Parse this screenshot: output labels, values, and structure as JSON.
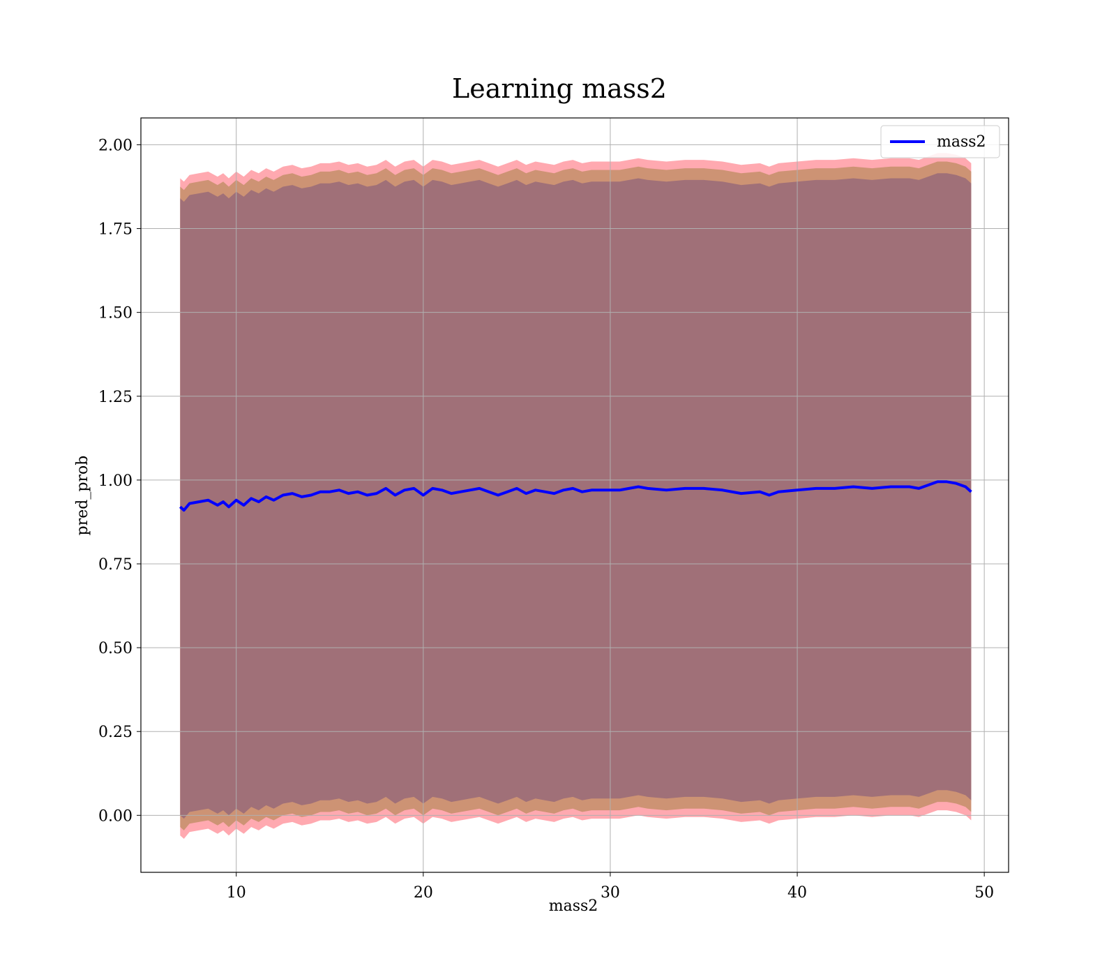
{
  "chart_data": {
    "type": "line",
    "title": "Learning mass2",
    "xlabel": "mass2",
    "ylabel": "pred_prob",
    "xlim": [
      4.9,
      51.3
    ],
    "ylim": [
      -0.17,
      2.08
    ],
    "xticks": [
      10,
      20,
      30,
      40,
      50
    ],
    "yticks": [
      0.0,
      0.25,
      0.5,
      0.75,
      1.0,
      1.25,
      1.5,
      1.75,
      2.0
    ],
    "ytick_labels": [
      "0.00",
      "0.25",
      "0.50",
      "0.75",
      "1.00",
      "1.25",
      "1.50",
      "1.75",
      "2.00"
    ],
    "grid": true,
    "legend": {
      "placement": "top-right",
      "entries": [
        "mass2"
      ]
    },
    "colors": {
      "line": "#0000ff",
      "outer_band": "#ff9aa2",
      "middle_band": "#c8906e",
      "inner_band": "#a07078",
      "grid": "#b0b0b0"
    },
    "series": [
      {
        "name": "mass2",
        "x": [
          7.0,
          7.2,
          7.5,
          8.0,
          8.5,
          9.0,
          9.3,
          9.6,
          10.0,
          10.4,
          10.8,
          11.2,
          11.6,
          12.0,
          12.5,
          13.0,
          13.5,
          14.0,
          14.5,
          15.0,
          15.5,
          16.0,
          16.5,
          17.0,
          17.5,
          18.0,
          18.5,
          19.0,
          19.5,
          20.0,
          20.5,
          21.0,
          21.5,
          22.0,
          22.5,
          23.0,
          23.5,
          24.0,
          24.5,
          25.0,
          25.5,
          26.0,
          26.5,
          27.0,
          27.5,
          28.0,
          28.5,
          29.0,
          29.5,
          30.0,
          30.5,
          31.0,
          31.5,
          32.0,
          33.0,
          34.0,
          35.0,
          36.0,
          37.0,
          38.0,
          38.5,
          39.0,
          40.0,
          41.0,
          42.0,
          43.0,
          44.0,
          45.0,
          46.0,
          46.5,
          47.0,
          47.5,
          48.0,
          48.5,
          49.0,
          49.3
        ],
        "y": [
          0.92,
          0.91,
          0.93,
          0.935,
          0.94,
          0.925,
          0.935,
          0.92,
          0.94,
          0.925,
          0.945,
          0.935,
          0.95,
          0.94,
          0.955,
          0.96,
          0.95,
          0.955,
          0.965,
          0.965,
          0.97,
          0.96,
          0.965,
          0.955,
          0.96,
          0.975,
          0.955,
          0.97,
          0.975,
          0.955,
          0.975,
          0.97,
          0.96,
          0.965,
          0.97,
          0.975,
          0.965,
          0.955,
          0.965,
          0.975,
          0.96,
          0.97,
          0.965,
          0.96,
          0.97,
          0.975,
          0.965,
          0.97,
          0.97,
          0.97,
          0.97,
          0.975,
          0.98,
          0.975,
          0.97,
          0.975,
          0.975,
          0.97,
          0.96,
          0.965,
          0.955,
          0.965,
          0.97,
          0.975,
          0.975,
          0.98,
          0.975,
          0.98,
          0.98,
          0.975,
          0.985,
          0.995,
          0.995,
          0.99,
          0.98,
          0.965
        ]
      }
    ],
    "bands": [
      {
        "offset_outer": 0.98,
        "offset_middle": 0.955,
        "offset_inner": 0.92
      }
    ]
  }
}
